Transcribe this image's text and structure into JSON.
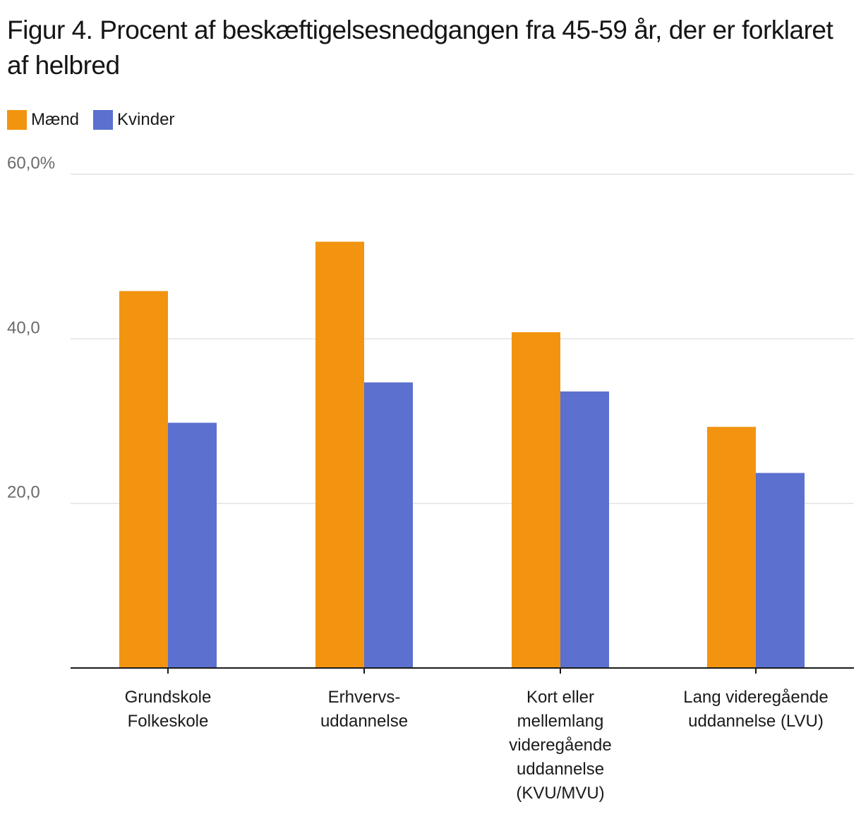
{
  "chart_data": {
    "type": "bar",
    "title": "Figur 4. Procent af beskæftigelsesnedgangen fra 45-59 år, der er forklaret af helbred",
    "categories": [
      [
        "Grundskole",
        "Folkeskole"
      ],
      [
        "Erhvervs-",
        "uddannelse"
      ],
      [
        "Kort eller",
        "mellemlang",
        "videregående",
        "uddannelse",
        "(KVU/MVU)"
      ],
      [
        "Lang videregående",
        "uddannelse (LVU)"
      ]
    ],
    "series": [
      {
        "name": "Mænd",
        "color": "#F2940F",
        "values": [
          45.8,
          51.8,
          40.8,
          29.3
        ]
      },
      {
        "name": "Kvinder",
        "color": "#5B70CF",
        "values": [
          29.8,
          34.7,
          33.6,
          23.7
        ]
      }
    ],
    "ylim": [
      0,
      60
    ],
    "yticks": [
      {
        "value": 20,
        "label": "20,0"
      },
      {
        "value": 40,
        "label": "40,0"
      },
      {
        "value": 60,
        "label": "60,0%"
      }
    ],
    "xlabel": "",
    "ylabel": "",
    "grid": true,
    "legend_position": "top-left"
  }
}
